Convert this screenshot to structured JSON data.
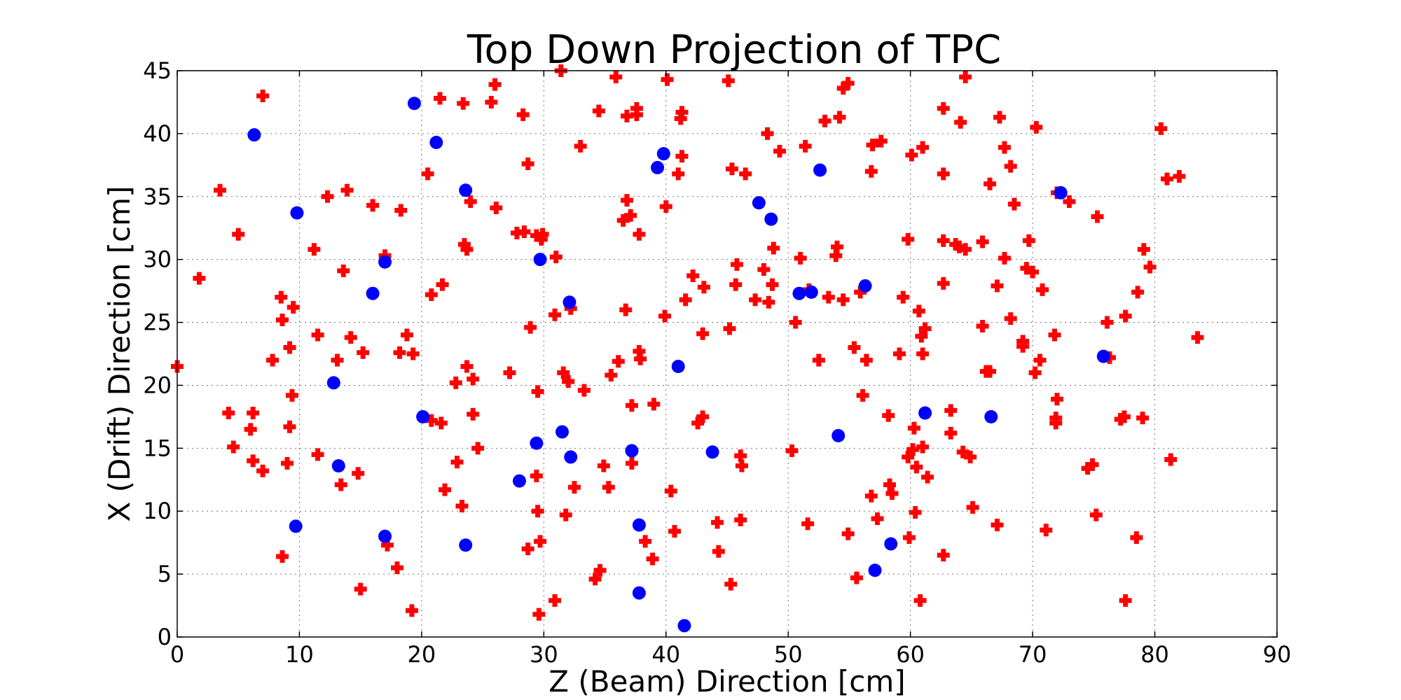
{
  "chart_data": {
    "type": "scatter",
    "title": "Top Down Projection of TPC",
    "xlabel": "Z (Beam) Direction [cm]",
    "ylabel": "X (Drift) Direction [cm]",
    "xlim": [
      0,
      90
    ],
    "ylim": [
      0,
      45
    ],
    "xticks": [
      0,
      10,
      20,
      30,
      40,
      50,
      60,
      70,
      80,
      90
    ],
    "yticks": [
      0,
      5,
      10,
      15,
      20,
      25,
      30,
      35,
      40,
      45
    ],
    "grid": true,
    "colors": {
      "plus_series": "#ff0000",
      "circle_series": "#0000ff"
    },
    "series": [
      {
        "marker": "plus",
        "color": "#ff0000",
        "points": [
          [
            0,
            21.5
          ],
          [
            1.8,
            28.5
          ],
          [
            3.5,
            35.5
          ],
          [
            5,
            32
          ],
          [
            7,
            43
          ],
          [
            4.2,
            17.8
          ],
          [
            4.6,
            15.1
          ],
          [
            6,
            16.5
          ],
          [
            6.2,
            17.8
          ],
          [
            6.2,
            14
          ],
          [
            7,
            13.2
          ],
          [
            7.8,
            22
          ],
          [
            8.5,
            27
          ],
          [
            8.6,
            25.2
          ],
          [
            8.6,
            6.4
          ],
          [
            9,
            13.8
          ],
          [
            9.2,
            16.7
          ],
          [
            9.2,
            23
          ],
          [
            9.4,
            19.2
          ],
          [
            9.5,
            26.2
          ],
          [
            11.2,
            30.8
          ],
          [
            11.5,
            24
          ],
          [
            11.5,
            14.5
          ],
          [
            12.3,
            35
          ],
          [
            13.1,
            22
          ],
          [
            13.4,
            12.1
          ],
          [
            13.6,
            29.1
          ],
          [
            13.9,
            35.5
          ],
          [
            14.2,
            23.8
          ],
          [
            14.8,
            13
          ],
          [
            15.2,
            22.6
          ],
          [
            15,
            3.8
          ],
          [
            16,
            34.3
          ],
          [
            17,
            30.3
          ],
          [
            17.2,
            7.3
          ],
          [
            18,
            5.5
          ],
          [
            18.2,
            22.6
          ],
          [
            18.3,
            33.9
          ],
          [
            18.8,
            24
          ],
          [
            19.3,
            22.5
          ],
          [
            19.2,
            2.1
          ],
          [
            20.5,
            36.8
          ],
          [
            20.8,
            17.2
          ],
          [
            20.8,
            27.2
          ],
          [
            21.5,
            42.8
          ],
          [
            21.7,
            28
          ],
          [
            21.6,
            17
          ],
          [
            21.9,
            11.7
          ],
          [
            22.9,
            13.9
          ],
          [
            22.8,
            20.2
          ],
          [
            23.3,
            10.4
          ],
          [
            23.4,
            42.4
          ],
          [
            23.5,
            31.2
          ],
          [
            23.7,
            30.8
          ],
          [
            23.7,
            21.5
          ],
          [
            24.2,
            20.5
          ],
          [
            24,
            34.6
          ],
          [
            24.2,
            17.7
          ],
          [
            24.6,
            15
          ],
          [
            25.7,
            42.5
          ],
          [
            26,
            43.9
          ],
          [
            26.1,
            34.1
          ],
          [
            27.2,
            21
          ],
          [
            27.8,
            32.1
          ],
          [
            28.3,
            41.5
          ],
          [
            28.4,
            32.2
          ],
          [
            28.7,
            7
          ],
          [
            28.7,
            37.6
          ],
          [
            28.9,
            24.6
          ],
          [
            29.4,
            12.8
          ],
          [
            29.5,
            19.5
          ],
          [
            29.5,
            10
          ],
          [
            29.6,
            1.8
          ],
          [
            29.7,
            7.6
          ],
          [
            29.4,
            31.9
          ],
          [
            29.9,
            32
          ],
          [
            29.8,
            31.6
          ],
          [
            30.9,
            2.9
          ],
          [
            30.9,
            25.6
          ],
          [
            31,
            30.2
          ],
          [
            31.4,
            45
          ],
          [
            31.6,
            21
          ],
          [
            31.8,
            9.7
          ],
          [
            32,
            20.3
          ],
          [
            32.2,
            26.1
          ],
          [
            32.5,
            11.9
          ],
          [
            33,
            39
          ],
          [
            33.3,
            19.6
          ],
          [
            34.2,
            4.6
          ],
          [
            34.5,
            41.8
          ],
          [
            34.6,
            5.3
          ],
          [
            34.9,
            13.6
          ],
          [
            35.3,
            11.9
          ],
          [
            35.5,
            20.8
          ],
          [
            35.9,
            44.5
          ],
          [
            36.1,
            21.9
          ],
          [
            36.5,
            33.1
          ],
          [
            36.7,
            26
          ],
          [
            36.8,
            34.7
          ],
          [
            36.8,
            41.4
          ],
          [
            37.1,
            33.5
          ],
          [
            37.2,
            18.4
          ],
          [
            37.2,
            13.8
          ],
          [
            37.6,
            41.5
          ],
          [
            37.6,
            42
          ],
          [
            37.8,
            32
          ],
          [
            37.9,
            22.1
          ],
          [
            37.8,
            22.7
          ],
          [
            38.3,
            7.6
          ],
          [
            38.9,
            6.2
          ],
          [
            39,
            18.5
          ],
          [
            39.9,
            25.5
          ],
          [
            40,
            34.2
          ],
          [
            40.1,
            44.3
          ],
          [
            40.4,
            11.6
          ],
          [
            40.7,
            8.4
          ],
          [
            41,
            36.8
          ],
          [
            41.2,
            41.2
          ],
          [
            41.3,
            41.7
          ],
          [
            41.3,
            38.2
          ],
          [
            41.6,
            26.8
          ],
          [
            42.2,
            28.7
          ],
          [
            42.6,
            17
          ],
          [
            43,
            17.5
          ],
          [
            43,
            24.1
          ],
          [
            43.1,
            27.8
          ],
          [
            44.2,
            9.1
          ],
          [
            44.3,
            6.8
          ],
          [
            45.1,
            44.2
          ],
          [
            45.2,
            24.5
          ],
          [
            45.4,
            37.2
          ],
          [
            45.3,
            4.2
          ],
          [
            45.7,
            28
          ],
          [
            45.8,
            29.6
          ],
          [
            46.1,
            14.4
          ],
          [
            46.2,
            13.6
          ],
          [
            46.1,
            9.3
          ],
          [
            46.5,
            36.8
          ],
          [
            47.3,
            26.8
          ],
          [
            48,
            29.2
          ],
          [
            48.3,
            40
          ],
          [
            48.4,
            26.6
          ],
          [
            48.7,
            28
          ],
          [
            48.8,
            30.9
          ],
          [
            49.3,
            38.6
          ],
          [
            50.3,
            14.8
          ],
          [
            50.6,
            25
          ],
          [
            51,
            30.1
          ],
          [
            51.4,
            39
          ],
          [
            51.6,
            9
          ],
          [
            51.7,
            27.6
          ],
          [
            52.5,
            22
          ],
          [
            53,
            41
          ],
          [
            53.3,
            27
          ],
          [
            53.9,
            30.3
          ],
          [
            54,
            31
          ],
          [
            54.2,
            41.3
          ],
          [
            54.5,
            43.6
          ],
          [
            54.5,
            26.8
          ],
          [
            54.9,
            8.2
          ],
          [
            54.9,
            44
          ],
          [
            55.4,
            23
          ],
          [
            55.6,
            4.7
          ],
          [
            55.9,
            27.4
          ],
          [
            56.1,
            19.2
          ],
          [
            56.4,
            22
          ],
          [
            56.8,
            11.2
          ],
          [
            56.8,
            37
          ],
          [
            56.9,
            39.1
          ],
          [
            57.3,
            9.4
          ],
          [
            57.6,
            39.4
          ],
          [
            58.2,
            17.6
          ],
          [
            58.3,
            12.1
          ],
          [
            58.5,
            11.4
          ],
          [
            59.1,
            22.5
          ],
          [
            59.4,
            27
          ],
          [
            59.8,
            14.3
          ],
          [
            59.8,
            31.6
          ],
          [
            59.9,
            7.9
          ],
          [
            60.1,
            38.3
          ],
          [
            60.2,
            14.9
          ],
          [
            60.3,
            16.6
          ],
          [
            60.4,
            9.9
          ],
          [
            60.5,
            13.5
          ],
          [
            60.7,
            25.9
          ],
          [
            60.8,
            2.9
          ],
          [
            60.9,
            23.9
          ],
          [
            61,
            15.1
          ],
          [
            61,
            22.5
          ],
          [
            61,
            38.9
          ],
          [
            61.2,
            24.5
          ],
          [
            61.4,
            12.7
          ],
          [
            62.7,
            42
          ],
          [
            62.7,
            36.8
          ],
          [
            62.7,
            31.5
          ],
          [
            62.7,
            28.1
          ],
          [
            62.7,
            6.5
          ],
          [
            63.3,
            18
          ],
          [
            63.3,
            16.2
          ],
          [
            63.7,
            31.2
          ],
          [
            64,
            31
          ],
          [
            64.1,
            40.9
          ],
          [
            64.3,
            14.7
          ],
          [
            64.5,
            44.5
          ],
          [
            64.5,
            30.8
          ],
          [
            64.9,
            14.3
          ],
          [
            65.1,
            10.3
          ],
          [
            65.9,
            31.4
          ],
          [
            65.9,
            24.7
          ],
          [
            66.2,
            21.1
          ],
          [
            66.5,
            21.1
          ],
          [
            66.5,
            36
          ],
          [
            67.1,
            27.9
          ],
          [
            67.1,
            8.9
          ],
          [
            67.3,
            41.3
          ],
          [
            67.7,
            38.9
          ],
          [
            67.7,
            30.1
          ],
          [
            68.2,
            37.4
          ],
          [
            68.2,
            25.3
          ],
          [
            68.5,
            34.4
          ],
          [
            69.2,
            23.5
          ],
          [
            69.2,
            23.1
          ],
          [
            69.5,
            29.3
          ],
          [
            69.7,
            31.5
          ],
          [
            70,
            29
          ],
          [
            70.2,
            21
          ],
          [
            70.3,
            40.5
          ],
          [
            70.6,
            22
          ],
          [
            70.8,
            27.6
          ],
          [
            71.1,
            8.5
          ],
          [
            71.8,
            24
          ],
          [
            71.9,
            17.4
          ],
          [
            71.9,
            17
          ],
          [
            72,
            18.9
          ],
          [
            72,
            35.3
          ],
          [
            73,
            34.6
          ],
          [
            74.5,
            13.4
          ],
          [
            74.9,
            13.7
          ],
          [
            75.2,
            9.7
          ],
          [
            75.3,
            33.4
          ],
          [
            76.1,
            25
          ],
          [
            76.3,
            22.2
          ],
          [
            77.2,
            17.3
          ],
          [
            77.5,
            17.5
          ],
          [
            77.6,
            2.9
          ],
          [
            77.6,
            25.5
          ],
          [
            78.5,
            7.9
          ],
          [
            78.6,
            27.4
          ],
          [
            79,
            17.4
          ],
          [
            79.1,
            30.8
          ],
          [
            79.6,
            29.4
          ],
          [
            80.5,
            40.4
          ],
          [
            81,
            36.4
          ],
          [
            81.3,
            14.1
          ],
          [
            82,
            36.6
          ],
          [
            83.5,
            23.8
          ]
        ]
      },
      {
        "marker": "circle",
        "color": "#0000ff",
        "points": [
          [
            6.3,
            39.9
          ],
          [
            9.8,
            33.7
          ],
          [
            9.7,
            8.8
          ],
          [
            12.8,
            20.2
          ],
          [
            13.2,
            13.6
          ],
          [
            16,
            27.3
          ],
          [
            17,
            29.8
          ],
          [
            17,
            8
          ],
          [
            19.4,
            42.4
          ],
          [
            20.1,
            17.5
          ],
          [
            21.2,
            39.3
          ],
          [
            23.6,
            35.5
          ],
          [
            23.6,
            7.3
          ],
          [
            28,
            12.4
          ],
          [
            29.4,
            15.4
          ],
          [
            29.7,
            30
          ],
          [
            31.5,
            16.3
          ],
          [
            32.1,
            26.6
          ],
          [
            32.2,
            14.3
          ],
          [
            37.2,
            14.8
          ],
          [
            37.8,
            8.9
          ],
          [
            37.8,
            3.5
          ],
          [
            39.3,
            37.3
          ],
          [
            39.8,
            38.4
          ],
          [
            41,
            21.5
          ],
          [
            41.5,
            0.9
          ],
          [
            43.8,
            14.7
          ],
          [
            47.6,
            34.5
          ],
          [
            48.6,
            33.2
          ],
          [
            50.9,
            27.3
          ],
          [
            51.9,
            27.4
          ],
          [
            52.6,
            37.1
          ],
          [
            54.1,
            16
          ],
          [
            56.3,
            27.9
          ],
          [
            57.1,
            5.3
          ],
          [
            58.4,
            7.4
          ],
          [
            61.2,
            17.8
          ],
          [
            66.6,
            17.5
          ],
          [
            72.3,
            35.3
          ],
          [
            75.8,
            22.3
          ]
        ]
      }
    ]
  }
}
